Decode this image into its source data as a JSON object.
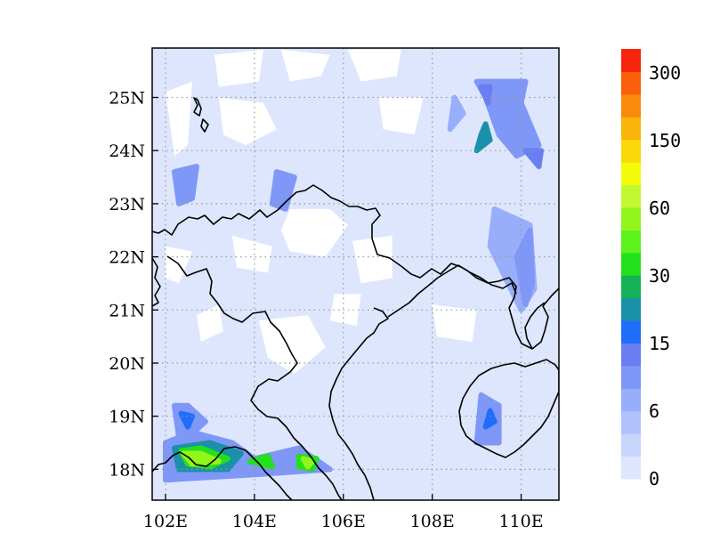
{
  "chart_data": {
    "type": "heatmap",
    "title": "",
    "xlabel": "",
    "ylabel": "",
    "xlim": [
      101.7,
      110.85
    ],
    "ylim": [
      17.42,
      25.93
    ],
    "x_ticks": [
      "102E",
      "104E",
      "106E",
      "108E",
      "110E"
    ],
    "x_tick_values": [
      102,
      104,
      106,
      108,
      110
    ],
    "y_ticks": [
      "18N",
      "19N",
      "20N",
      "21N",
      "22N",
      "23N",
      "24N",
      "25N"
    ],
    "y_tick_values": [
      18,
      19,
      20,
      21,
      22,
      23,
      24,
      25
    ],
    "grid": true,
    "colorbar": {
      "labels": [
        "0",
        "6",
        "15",
        "30",
        "60",
        "150",
        "300"
      ],
      "colors": [
        "#dde6fd",
        "#c8d6fd",
        "#b0c2fb",
        "#98aefa",
        "#7f97f6",
        "#6a7ef2",
        "#1f6dfa",
        "#1a91a8",
        "#16b258",
        "#22e01c",
        "#5cf21c",
        "#92f61c",
        "#c2f832",
        "#f2fa0a",
        "#fad80a",
        "#fab40a",
        "#fa8a0a",
        "#f8600a",
        "#f5240a"
      ]
    },
    "regions": [
      {
        "level": 4,
        "points": [
          [
            109.0,
            25.3
          ],
          [
            109.2,
            25.0
          ],
          [
            109.5,
            24.3
          ],
          [
            109.9,
            23.9
          ],
          [
            110.4,
            24.1
          ],
          [
            110.0,
            24.9
          ],
          [
            110.1,
            25.3
          ]
        ]
      },
      {
        "level": 7,
        "points": [
          [
            109.1,
            24.3
          ],
          [
            109.2,
            24.5
          ],
          [
            109.3,
            24.2
          ],
          [
            109.0,
            24.0
          ]
        ]
      },
      {
        "level": 5,
        "points": [
          [
            110.4,
            23.7
          ],
          [
            110.45,
            24.0
          ],
          [
            110.1,
            24.0
          ]
        ]
      },
      {
        "level": 5,
        "points": [
          [
            109.1,
            25.2
          ],
          [
            109.3,
            25.2
          ],
          [
            109.25,
            24.9
          ]
        ]
      },
      {
        "level": 4,
        "points": [
          [
            102.2,
            23.6
          ],
          [
            102.7,
            23.7
          ],
          [
            102.6,
            23.1
          ],
          [
            102.3,
            23.0
          ]
        ]
      },
      {
        "level": 4,
        "points": [
          [
            104.5,
            23.6
          ],
          [
            104.9,
            23.5
          ],
          [
            104.7,
            22.9
          ],
          [
            104.4,
            23.0
          ]
        ]
      },
      {
        "level": 3,
        "points": [
          [
            109.3,
            22.2
          ],
          [
            109.4,
            22.9
          ],
          [
            110.2,
            22.6
          ],
          [
            110.3,
            21.4
          ],
          [
            110.0,
            21.0
          ]
        ]
      },
      {
        "level": 4,
        "points": [
          [
            109.9,
            22.0
          ],
          [
            110.2,
            22.5
          ],
          [
            110.25,
            21.5
          ],
          [
            110.1,
            21.1
          ]
        ]
      },
      {
        "level": 3,
        "points": [
          [
            108.4,
            24.4
          ],
          [
            108.5,
            25.0
          ],
          [
            108.7,
            24.7
          ]
        ]
      },
      {
        "level": 4,
        "points": [
          [
            109.0,
            18.5
          ],
          [
            109.1,
            19.4
          ],
          [
            109.5,
            19.2
          ],
          [
            109.5,
            18.5
          ]
        ]
      },
      {
        "level": 6,
        "points": [
          [
            109.2,
            18.8
          ],
          [
            109.3,
            19.1
          ],
          [
            109.4,
            18.9
          ]
        ]
      },
      {
        "level": 4,
        "points": [
          [
            102.2,
            19.2
          ],
          [
            102.5,
            19.2
          ],
          [
            102.9,
            18.9
          ],
          [
            102.5,
            18.6
          ],
          [
            102.3,
            18.6
          ]
        ]
      },
      {
        "level": 6,
        "points": [
          [
            102.35,
            19.05
          ],
          [
            102.6,
            19.0
          ],
          [
            102.5,
            18.8
          ]
        ]
      },
      {
        "level": 4,
        "points": [
          [
            102.0,
            18.5
          ],
          [
            102.6,
            18.7
          ],
          [
            103.5,
            18.5
          ],
          [
            104.0,
            18.2
          ],
          [
            105.0,
            18.4
          ],
          [
            105.7,
            18.0
          ],
          [
            104.0,
            17.9
          ],
          [
            102.0,
            17.8
          ]
        ]
      },
      {
        "level": 7,
        "points": [
          [
            102.2,
            18.4
          ],
          [
            103.0,
            18.5
          ],
          [
            103.7,
            18.3
          ],
          [
            103.4,
            18.0
          ],
          [
            102.3,
            18.0
          ]
        ]
      },
      {
        "level": 9,
        "points": [
          [
            102.35,
            18.35
          ],
          [
            102.8,
            18.4
          ],
          [
            103.4,
            18.2
          ],
          [
            103.0,
            18.05
          ],
          [
            102.5,
            18.1
          ]
        ]
      },
      {
        "level": 11,
        "points": [
          [
            102.4,
            18.3
          ],
          [
            102.8,
            18.3
          ],
          [
            103.2,
            18.15
          ],
          [
            102.6,
            18.1
          ]
        ]
      },
      {
        "level": 9,
        "points": [
          [
            103.9,
            18.15
          ],
          [
            104.3,
            18.25
          ],
          [
            104.4,
            18.05
          ]
        ]
      },
      {
        "level": 9,
        "points": [
          [
            105.0,
            18.25
          ],
          [
            105.4,
            18.2
          ],
          [
            105.3,
            18.0
          ],
          [
            105.0,
            18.05
          ]
        ]
      },
      {
        "level": 11,
        "points": [
          [
            105.1,
            18.2
          ],
          [
            105.3,
            18.15
          ],
          [
            105.2,
            18.05
          ]
        ]
      }
    ],
    "blanks": [
      {
        "points": [
          [
            103.1,
            25.8
          ],
          [
            104.2,
            25.9
          ],
          [
            104.1,
            25.3
          ],
          [
            103.2,
            25.2
          ]
        ]
      },
      {
        "points": [
          [
            104.6,
            25.9
          ],
          [
            105.7,
            25.8
          ],
          [
            105.5,
            25.4
          ],
          [
            104.8,
            25.3
          ]
        ]
      },
      {
        "points": [
          [
            106.1,
            25.9
          ],
          [
            107.3,
            25.9
          ],
          [
            107.2,
            25.4
          ],
          [
            106.4,
            25.3
          ]
        ]
      },
      {
        "points": [
          [
            102.0,
            25.1
          ],
          [
            102.6,
            25.3
          ],
          [
            102.5,
            24.1
          ],
          [
            102.2,
            23.9
          ]
        ]
      },
      {
        "points": [
          [
            103.2,
            25.0
          ],
          [
            104.2,
            24.9
          ],
          [
            104.5,
            24.4
          ],
          [
            103.8,
            24.1
          ],
          [
            103.3,
            24.3
          ]
        ]
      },
      {
        "points": [
          [
            106.8,
            25.0
          ],
          [
            107.8,
            25.0
          ],
          [
            107.6,
            24.3
          ],
          [
            106.9,
            24.4
          ]
        ]
      },
      {
        "points": [
          [
            104.8,
            22.9
          ],
          [
            105.7,
            22.9
          ],
          [
            106.1,
            22.6
          ],
          [
            105.6,
            22.0
          ],
          [
            104.8,
            22.1
          ],
          [
            104.6,
            22.5
          ]
        ]
      },
      {
        "points": [
          [
            106.2,
            22.3
          ],
          [
            107.1,
            22.4
          ],
          [
            107.1,
            21.6
          ],
          [
            106.4,
            21.5
          ]
        ]
      },
      {
        "points": [
          [
            105.8,
            21.3
          ],
          [
            106.4,
            21.3
          ],
          [
            106.3,
            20.7
          ],
          [
            105.7,
            20.8
          ]
        ]
      },
      {
        "points": [
          [
            102.7,
            20.9
          ],
          [
            103.2,
            21.1
          ],
          [
            103.3,
            20.6
          ],
          [
            102.8,
            20.4
          ]
        ]
      },
      {
        "points": [
          [
            104.1,
            20.8
          ],
          [
            105.2,
            20.9
          ],
          [
            105.6,
            20.3
          ],
          [
            104.9,
            19.8
          ],
          [
            104.3,
            20.1
          ]
        ]
      },
      {
        "points": [
          [
            102.0,
            22.2
          ],
          [
            102.6,
            22.1
          ],
          [
            102.3,
            21.5
          ],
          [
            102.0,
            21.6
          ]
        ]
      },
      {
        "points": [
          [
            108.0,
            21.1
          ],
          [
            109.0,
            21.0
          ],
          [
            108.9,
            20.4
          ],
          [
            108.1,
            20.5
          ]
        ]
      },
      {
        "points": [
          [
            103.5,
            22.4
          ],
          [
            104.4,
            22.2
          ],
          [
            104.3,
            21.7
          ],
          [
            103.6,
            21.8
          ]
        ]
      }
    ]
  }
}
